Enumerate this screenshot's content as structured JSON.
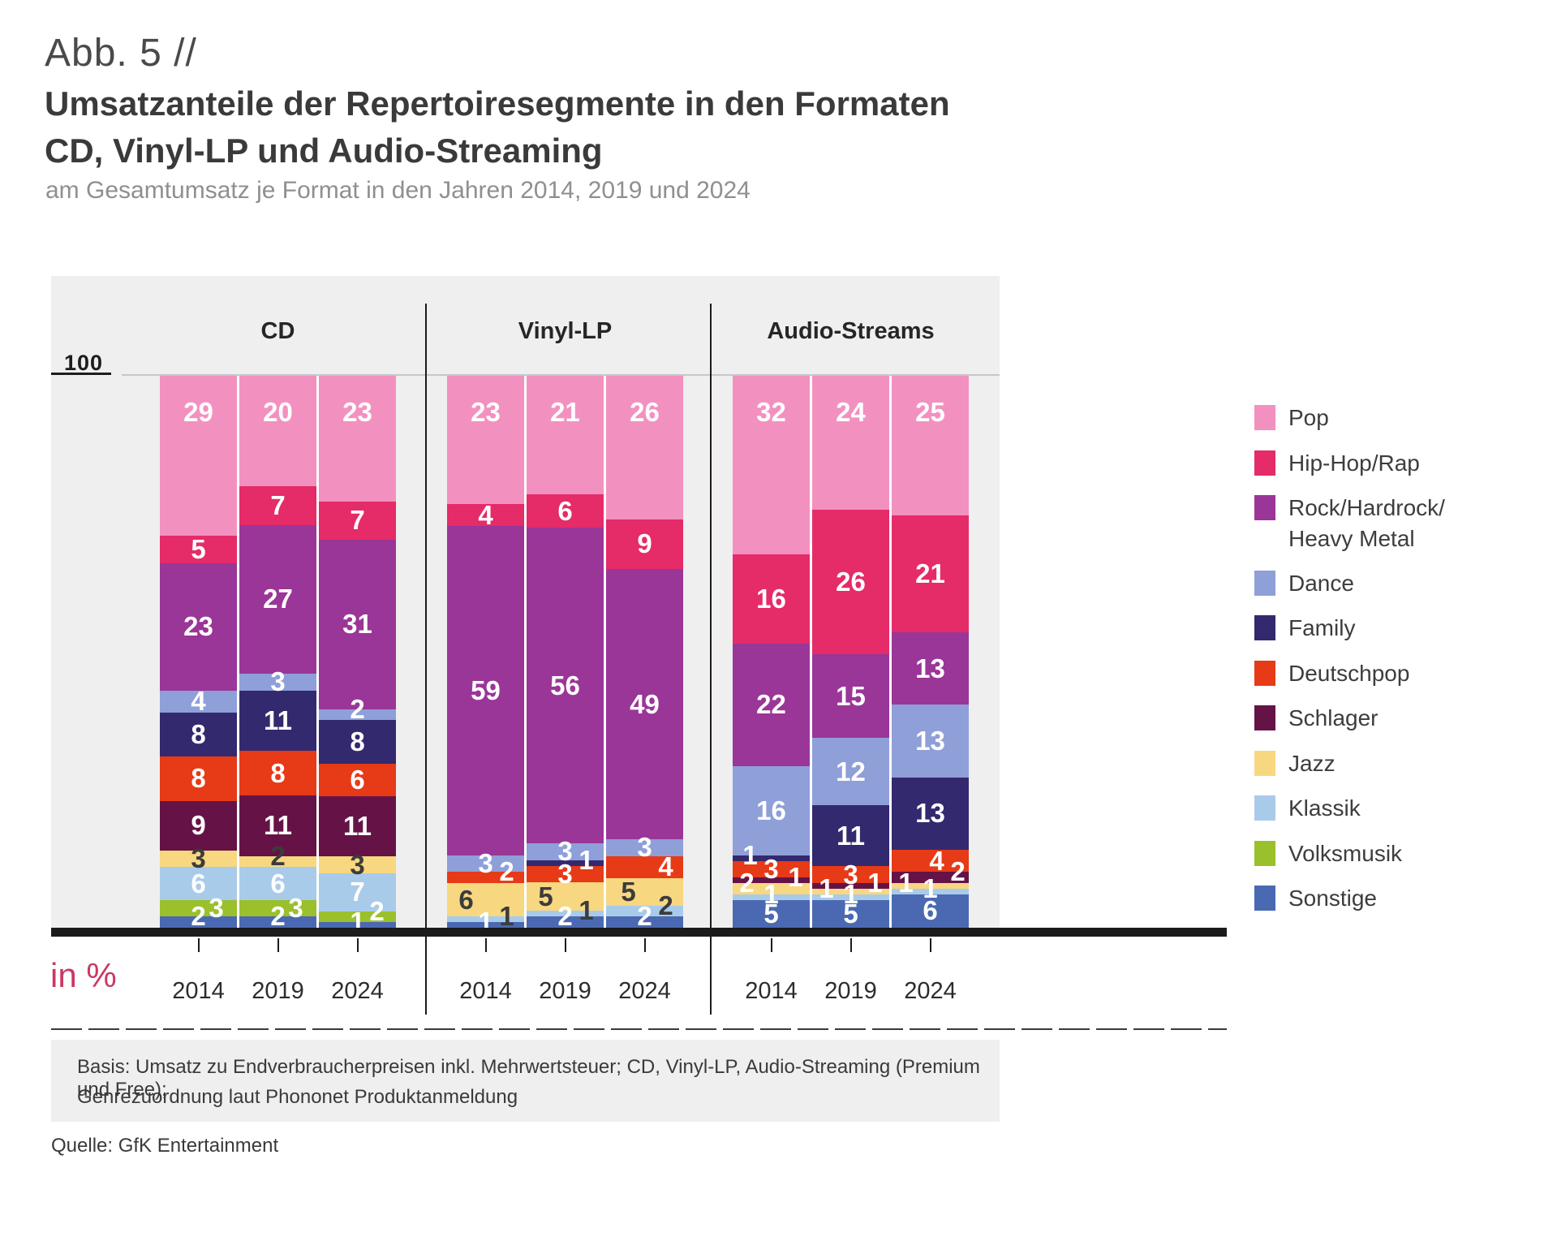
{
  "header": {
    "kicker": "Abb. 5 //",
    "title_line1": "Umsatzanteile der Repertoiresegmente in den Formaten",
    "title_line2": "CD, Vinyl-LP und Audio-Streaming",
    "subtitle": "am Gesamtumsatz je Format in den Jahren 2014, 2019 und 2024"
  },
  "axis": {
    "top_tick": "100",
    "unit_label": "in %"
  },
  "footer": {
    "basis_line1": "Basis: Umsatz zu Endverbraucherpreisen inkl. Mehrwertsteuer; CD, Vinyl-LP, Audio-Streaming (Premium und Free);",
    "basis_line2": "Genrezuordnung laut Phononet Produktanmeldung",
    "source": "Quelle: GfK Entertainment"
  },
  "chart_data": {
    "type": "bar",
    "variant": "100-percent-stacked-columns",
    "value_unit": "percent",
    "ylim": [
      0,
      100
    ],
    "legend_position": "right",
    "genres": [
      "Pop",
      "Hip-Hop/Rap",
      "Rock/Hardrock/Heavy Metal",
      "Dance",
      "Family",
      "Deutschpop",
      "Schlager",
      "Jazz",
      "Klassik",
      "Volksmusik",
      "Sonstige"
    ],
    "legend": [
      {
        "label_lines": [
          "Pop"
        ],
        "color": "#F291C0"
      },
      {
        "label_lines": [
          "Hip-Hop/Rap"
        ],
        "color": "#E52B68"
      },
      {
        "label_lines": [
          "Rock/Hardrock/",
          "Heavy Metal"
        ],
        "color": "#9A3697"
      },
      {
        "label_lines": [
          "Dance"
        ],
        "color": "#8F9FD8"
      },
      {
        "label_lines": [
          "Family"
        ],
        "color": "#33296E"
      },
      {
        "label_lines": [
          "Deutschpop"
        ],
        "color": "#E73A17"
      },
      {
        "label_lines": [
          "Schlager"
        ],
        "color": "#651347"
      },
      {
        "label_lines": [
          "Jazz"
        ],
        "color": "#F7D780"
      },
      {
        "label_lines": [
          "Klassik"
        ],
        "color": "#A9CBEA"
      },
      {
        "label_lines": [
          "Volksmusik"
        ],
        "color": "#9AC02C"
      },
      {
        "label_lines": [
          "Sonstige"
        ],
        "color": "#4A69B2"
      }
    ],
    "groups": [
      {
        "label": "CD",
        "bars": [
          {
            "year": "2014",
            "values": [
              29,
              5,
              23,
              4,
              8,
              8,
              9,
              3,
              6,
              3,
              2
            ],
            "label_dx": [
              0,
              0,
              0,
              0,
              0,
              0,
              0,
              0,
              0,
              22,
              0
            ],
            "dark_label_idx": [
              7
            ]
          },
          {
            "year": "2019",
            "values": [
              20,
              7,
              27,
              3,
              11,
              8,
              11,
              2,
              6,
              3,
              2
            ],
            "label_dx": [
              0,
              0,
              0,
              0,
              0,
              0,
              0,
              0,
              0,
              22,
              0
            ],
            "dark_label_idx": [
              7
            ]
          },
          {
            "year": "2024",
            "values": [
              23,
              7,
              31,
              2,
              8,
              6,
              11,
              3,
              7,
              2,
              1
            ],
            "label_dx": [
              0,
              0,
              0,
              0,
              0,
              0,
              0,
              0,
              0,
              24,
              0
            ],
            "dark_label_idx": [
              7
            ]
          }
        ]
      },
      {
        "label": "Vinyl-LP",
        "bars": [
          {
            "year": "2014",
            "values": [
              23,
              4,
              59,
              3,
              0,
              2,
              0,
              6,
              1,
              0,
              1
            ],
            "label_dx": [
              0,
              0,
              0,
              0,
              0,
              26,
              0,
              -24,
              26,
              0,
              0
            ],
            "dark_label_idx": [
              7,
              8
            ]
          },
          {
            "year": "2019",
            "values": [
              21,
              6,
              56,
              3,
              1,
              3,
              0,
              5,
              1,
              0,
              2
            ],
            "label_dx": [
              0,
              0,
              0,
              0,
              26,
              0,
              0,
              -24,
              26,
              0,
              0
            ],
            "dark_label_idx": [
              7,
              8
            ]
          },
          {
            "year": "2024",
            "values": [
              26,
              9,
              49,
              3,
              0,
              4,
              0,
              5,
              2,
              0,
              2
            ],
            "label_dx": [
              0,
              0,
              0,
              0,
              0,
              26,
              0,
              -20,
              26,
              0,
              0
            ],
            "dark_label_idx": [
              7,
              8
            ]
          }
        ]
      },
      {
        "label": "Audio-Streams",
        "bars": [
          {
            "year": "2014",
            "values": [
              32,
              16,
              22,
              16,
              1,
              3,
              1,
              2,
              1,
              0,
              5
            ],
            "label_dx": [
              0,
              0,
              0,
              0,
              -26,
              0,
              30,
              -30,
              0,
              0,
              0
            ],
            "dark_label_idx": []
          },
          {
            "year": "2019",
            "values": [
              24,
              26,
              15,
              12,
              11,
              3,
              1,
              1,
              1,
              0,
              5
            ],
            "label_dx": [
              0,
              0,
              0,
              0,
              0,
              0,
              30,
              -30,
              0,
              0,
              0
            ],
            "dark_label_idx": []
          },
          {
            "year": "2024",
            "values": [
              25,
              21,
              13,
              13,
              13,
              4,
              2,
              1,
              1,
              0,
              6
            ],
            "label_dx": [
              0,
              0,
              0,
              0,
              0,
              8,
              34,
              -30,
              0,
              0,
              0
            ],
            "dark_label_idx": []
          }
        ]
      }
    ]
  }
}
